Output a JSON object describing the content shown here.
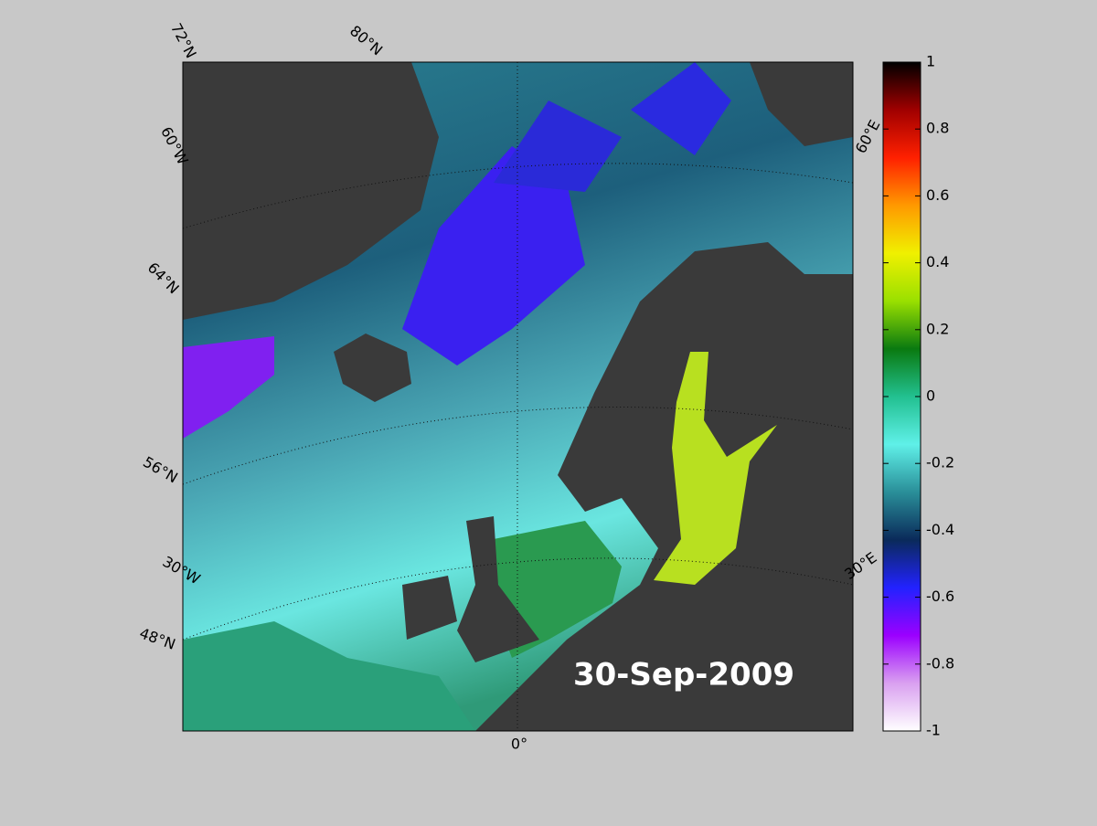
{
  "map": {
    "date_label": "30-Sep-2009",
    "graticule_labels": [
      "72°N",
      "80°N",
      "60°W",
      "64°N",
      "56°N",
      "30°W",
      "48°N",
      "0°",
      "30°E",
      "60°E"
    ],
    "colorbar": {
      "lim": [
        -1,
        1
      ],
      "ticks": [
        -1,
        -0.8,
        -0.6,
        -0.4,
        -0.2,
        0,
        0.2,
        0.4,
        0.6,
        0.8,
        1
      ],
      "colors": [
        "#ffffff",
        "#d9a0f0",
        "#9b00ff",
        "#2222ff",
        "#0a2a5a",
        "#2a8f99",
        "#5ff0e8",
        "#22c090",
        "#0a7a10",
        "#9ae000",
        "#f0f000",
        "#ff9900",
        "#ff2000",
        "#a00000",
        "#000000"
      ]
    }
  }
}
